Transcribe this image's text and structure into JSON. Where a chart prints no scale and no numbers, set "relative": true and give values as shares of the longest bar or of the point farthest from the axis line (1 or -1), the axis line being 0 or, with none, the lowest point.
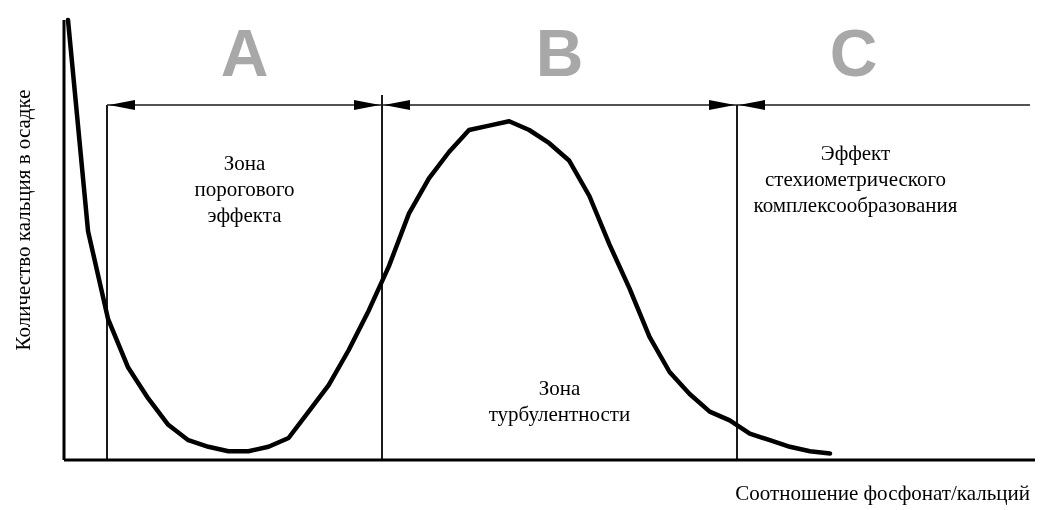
{
  "chart_data": {
    "type": "line",
    "relative": true,
    "marker": "none",
    "line_style": "solid",
    "xlabel": "Соотношение фосфонат/кальций",
    "ylabel": "Количество кальция в осадке",
    "categories": [
      null,
      null,
      null,
      null,
      null,
      null,
      null,
      null,
      null,
      null,
      null,
      null,
      null,
      null,
      null,
      null,
      null,
      null,
      null,
      null,
      null,
      null,
      null,
      null,
      null,
      null,
      null,
      null,
      null,
      null,
      null,
      null,
      null,
      null,
      null,
      null,
      null,
      null,
      null
    ],
    "series": [
      {
        "color": "#000000",
        "values": [
          1.0,
          0.52,
          0.32,
          0.21,
          0.14,
          0.08,
          0.045,
          0.03,
          0.02,
          0.02,
          0.03,
          0.05,
          0.11,
          0.17,
          0.25,
          0.34,
          0.44,
          0.56,
          0.64,
          0.7,
          0.75,
          0.76,
          0.77,
          0.75,
          0.72,
          0.68,
          0.6,
          0.49,
          0.39,
          0.28,
          0.2,
          0.15,
          0.11,
          0.09,
          0.06,
          0.045,
          0.03,
          0.02,
          0.015
        ]
      }
    ],
    "annotations": [
      "A",
      "Зона\nпорогового\nэффекта",
      "B",
      "Зона\nтурбулентности",
      "C",
      "Эффект\nстехиометрического\nкомплексообразования"
    ]
  }
}
